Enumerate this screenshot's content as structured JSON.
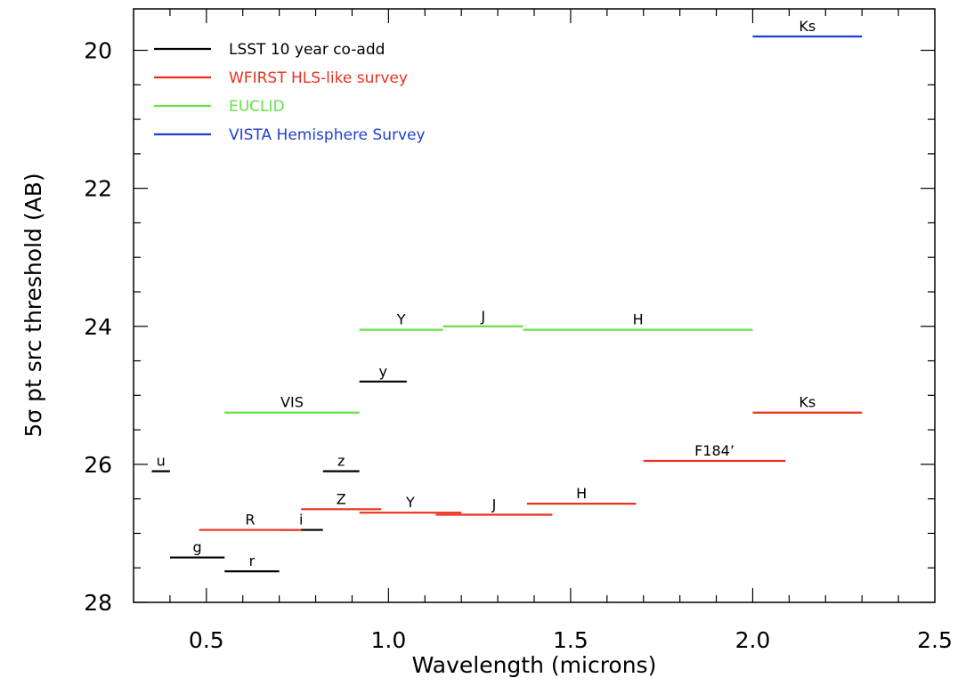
{
  "chart_data": {
    "type": "line",
    "xlabel": "Wavelength (microns)",
    "ylabel": "5σ pt src threshold (AB)",
    "xlim": [
      0.3,
      2.5
    ],
    "ylim": [
      28,
      19.4
    ],
    "y_inverted": true,
    "xticks": [
      "0.5",
      "1.0",
      "1.5",
      "2.0",
      "2.5"
    ],
    "xtick_values": [
      0.5,
      1.0,
      1.5,
      2.0,
      2.5
    ],
    "yticks": [
      "20",
      "22",
      "24",
      "26",
      "28"
    ],
    "ytick_values": [
      20,
      22,
      24,
      26,
      28
    ],
    "legend_position": "top-left",
    "legend": [
      {
        "name": "LSST 10 year co-add",
        "color": "#000000"
      },
      {
        "name": "WFIRST HLS-like survey",
        "color": "#e8321e"
      },
      {
        "name": "EUCLID",
        "color": "#66e04a"
      },
      {
        "name": "VISTA Hemisphere Survey",
        "color": "#1f3fd1"
      }
    ],
    "series": [
      {
        "name": "LSST 10 year co-add",
        "color": "#000000",
        "segments": [
          {
            "label": "u",
            "x0": 0.35,
            "x1": 0.4,
            "y": 26.1
          },
          {
            "label": "g",
            "x0": 0.4,
            "x1": 0.55,
            "y": 27.35
          },
          {
            "label": "r",
            "x0": 0.55,
            "x1": 0.7,
            "y": 27.55
          },
          {
            "label": "i",
            "x0": 0.7,
            "x1": 0.82,
            "y": 26.95
          },
          {
            "label": "z",
            "x0": 0.82,
            "x1": 0.92,
            "y": 26.1
          },
          {
            "label": "y",
            "x0": 0.92,
            "x1": 1.05,
            "y": 24.8
          }
        ]
      },
      {
        "name": "WFIRST HLS-like survey",
        "color": "#e8321e",
        "segments": [
          {
            "label": "R",
            "x0": 0.48,
            "x1": 0.76,
            "y": 26.95
          },
          {
            "label": "Z",
            "x0": 0.76,
            "x1": 0.98,
            "y": 26.65
          },
          {
            "label": "Y",
            "x0": 0.92,
            "x1": 1.2,
            "y": 26.7
          },
          {
            "label": "J",
            "x0": 1.13,
            "x1": 1.45,
            "y": 26.73
          },
          {
            "label": "H",
            "x0": 1.38,
            "x1": 1.68,
            "y": 26.57
          },
          {
            "label": "F184’",
            "x0": 1.7,
            "x1": 2.09,
            "y": 25.95
          },
          {
            "label": "Ks",
            "x0": 2.0,
            "x1": 2.3,
            "y": 25.25
          }
        ]
      },
      {
        "name": "EUCLID",
        "color": "#66e04a",
        "segments": [
          {
            "label": "VIS",
            "x0": 0.55,
            "x1": 0.92,
            "y": 25.25
          },
          {
            "label": "Y",
            "x0": 0.92,
            "x1": 1.15,
            "y": 24.05
          },
          {
            "label": "J",
            "x0": 1.15,
            "x1": 1.37,
            "y": 24.0
          },
          {
            "label": "H",
            "x0": 1.37,
            "x1": 2.0,
            "y": 24.05
          }
        ]
      },
      {
        "name": "VISTA Hemisphere Survey",
        "color": "#1f3fd1",
        "segments": [
          {
            "label": "Ks",
            "x0": 2.0,
            "x1": 2.3,
            "y": 19.8
          }
        ]
      }
    ]
  }
}
